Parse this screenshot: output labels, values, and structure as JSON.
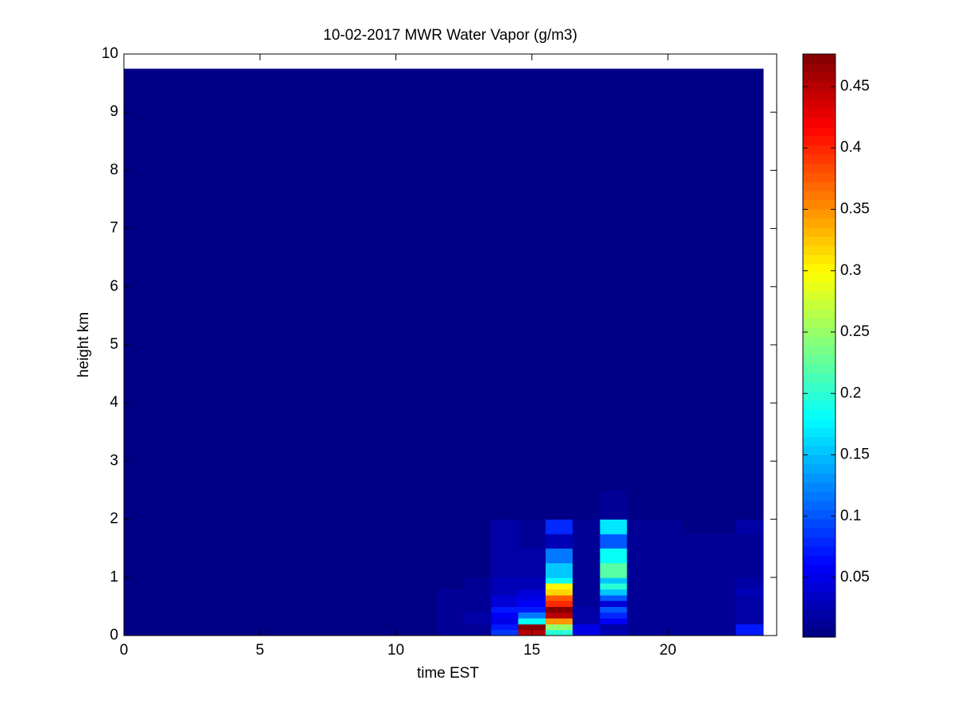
{
  "chart_data": {
    "type": "heatmap",
    "title": "10-02-2017 MWR Water Vapor (g/m3)",
    "x_label": "time EST",
    "y_label": "height km",
    "x": [
      0,
      0.5,
      1.5,
      2.5,
      3.5,
      4.5,
      5.5,
      6.5,
      7.5,
      8.5,
      9.5,
      10.5,
      11.5,
      12.5,
      13.5,
      14.5,
      15.5,
      16.5,
      17.5,
      18.5,
      19.5,
      20.5,
      21.5,
      22.5,
      23.5
    ],
    "y": [
      0,
      0.1,
      0.2,
      0.3,
      0.4,
      0.5,
      0.6,
      0.7,
      0.8,
      0.9,
      1.0,
      1.25,
      1.5,
      1.75,
      2.0,
      2.5,
      3.0,
      9.75
    ],
    "z": [
      [
        0.005,
        0.005,
        0.005,
        0.005,
        0.005,
        0.005,
        0.005,
        0.005,
        0.005,
        0.005,
        0.005,
        0.005,
        0.01,
        0.015,
        0.09,
        0.45,
        0.2,
        0.05,
        0.03,
        0.01,
        0.01,
        0.01,
        0.01,
        0.07
      ],
      [
        0.005,
        0.005,
        0.005,
        0.005,
        0.005,
        0.005,
        0.005,
        0.005,
        0.005,
        0.005,
        0.005,
        0.005,
        0.01,
        0.015,
        0.07,
        0.47,
        0.25,
        0.05,
        0.02,
        0.01,
        0.01,
        0.01,
        0.01,
        0.07
      ],
      [
        0.005,
        0.005,
        0.005,
        0.005,
        0.005,
        0.005,
        0.005,
        0.005,
        0.005,
        0.005,
        0.005,
        0.005,
        0.01,
        0.02,
        0.05,
        0.18,
        0.35,
        0.02,
        0.06,
        0.01,
        0.01,
        0.01,
        0.01,
        0.02
      ],
      [
        0.005,
        0.005,
        0.005,
        0.005,
        0.005,
        0.005,
        0.005,
        0.005,
        0.005,
        0.005,
        0.005,
        0.005,
        0.01,
        0.02,
        0.06,
        0.12,
        0.45,
        0.02,
        0.08,
        0.01,
        0.01,
        0.01,
        0.01,
        0.02
      ],
      [
        0.005,
        0.005,
        0.005,
        0.005,
        0.005,
        0.005,
        0.005,
        0.005,
        0.005,
        0.005,
        0.005,
        0.005,
        0.01,
        0.015,
        0.07,
        0.07,
        0.47,
        0.02,
        0.1,
        0.01,
        0.01,
        0.01,
        0.01,
        0.02
      ],
      [
        0.005,
        0.005,
        0.005,
        0.005,
        0.005,
        0.005,
        0.005,
        0.005,
        0.005,
        0.005,
        0.005,
        0.005,
        0.01,
        0.01,
        0.04,
        0.06,
        0.4,
        0.015,
        0.04,
        0.01,
        0.01,
        0.01,
        0.01,
        0.02
      ],
      [
        0.005,
        0.005,
        0.005,
        0.005,
        0.005,
        0.005,
        0.005,
        0.005,
        0.005,
        0.005,
        0.005,
        0.005,
        0.01,
        0.01,
        0.04,
        0.05,
        0.38,
        0.015,
        0.1,
        0.01,
        0.01,
        0.01,
        0.01,
        0.02
      ],
      [
        0.005,
        0.005,
        0.005,
        0.005,
        0.005,
        0.005,
        0.005,
        0.005,
        0.005,
        0.005,
        0.005,
        0.005,
        0.01,
        0.01,
        0.03,
        0.04,
        0.32,
        0.015,
        0.15,
        0.01,
        0.01,
        0.01,
        0.01,
        0.03
      ],
      [
        0.005,
        0.005,
        0.005,
        0.005,
        0.005,
        0.005,
        0.005,
        0.005,
        0.005,
        0.005,
        0.005,
        0.005,
        0.005,
        0.01,
        0.03,
        0.03,
        0.3,
        0.015,
        0.2,
        0.01,
        0.01,
        0.01,
        0.01,
        0.02
      ],
      [
        0.005,
        0.005,
        0.005,
        0.005,
        0.005,
        0.005,
        0.005,
        0.005,
        0.005,
        0.005,
        0.005,
        0.005,
        0.005,
        0.01,
        0.03,
        0.03,
        0.18,
        0.015,
        0.15,
        0.01,
        0.01,
        0.01,
        0.01,
        0.02
      ],
      [
        0.005,
        0.005,
        0.005,
        0.005,
        0.005,
        0.005,
        0.005,
        0.005,
        0.005,
        0.005,
        0.005,
        0.005,
        0.005,
        0.005,
        0.02,
        0.02,
        0.15,
        0.01,
        0.22,
        0.01,
        0.01,
        0.01,
        0.01,
        0.01
      ],
      [
        0.005,
        0.005,
        0.005,
        0.005,
        0.005,
        0.005,
        0.005,
        0.005,
        0.005,
        0.005,
        0.005,
        0.005,
        0.005,
        0.005,
        0.02,
        0.02,
        0.12,
        0.01,
        0.18,
        0.01,
        0.01,
        0.01,
        0.01,
        0.01
      ],
      [
        0.005,
        0.005,
        0.005,
        0.005,
        0.005,
        0.005,
        0.005,
        0.005,
        0.005,
        0.005,
        0.005,
        0.005,
        0.005,
        0.005,
        0.02,
        0.01,
        0.03,
        0.01,
        0.1,
        0.01,
        0.01,
        0.01,
        0.01,
        0.01
      ],
      [
        0.005,
        0.005,
        0.005,
        0.005,
        0.005,
        0.005,
        0.005,
        0.005,
        0.005,
        0.005,
        0.005,
        0.005,
        0.005,
        0.008,
        0.02,
        0.01,
        0.08,
        0.01,
        0.17,
        0.01,
        0.01,
        0.008,
        0.008,
        0.02
      ],
      [
        0.005,
        0.005,
        0.005,
        0.005,
        0.005,
        0.005,
        0.005,
        0.005,
        0.005,
        0.005,
        0.005,
        0.005,
        0.005,
        0.005,
        0.005,
        0.005,
        0.005,
        0.005,
        0.015,
        0.008,
        0.005,
        0.008,
        0.005,
        0.005
      ],
      [
        0.005,
        0.005,
        0.005,
        0.005,
        0.005,
        0.005,
        0.005,
        0.005,
        0.005,
        0.005,
        0.005,
        0.005,
        0.005,
        0.005,
        0.005,
        0.005,
        0.005,
        0.005,
        0.005,
        0.005,
        0.005,
        0.005,
        0.005,
        0.005
      ],
      [
        0.005,
        0.005,
        0.005,
        0.005,
        0.005,
        0.005,
        0.005,
        0.005,
        0.005,
        0.005,
        0.005,
        0.005,
        0.005,
        0.005,
        0.005,
        0.005,
        0.005,
        0.005,
        0.005,
        0.005,
        0.005,
        0.005,
        0.005,
        0.005
      ]
    ],
    "xlim": [
      0,
      24
    ],
    "xticks": [
      0,
      5,
      10,
      15,
      20
    ],
    "ylim": [
      0,
      10
    ],
    "yticks": [
      0,
      1,
      2,
      3,
      4,
      5,
      6,
      7,
      8,
      9,
      10
    ],
    "colormap": "jet",
    "clim": [
      0.0015,
      0.4765
    ],
    "cticks": [
      0.05,
      0.1,
      0.15,
      0.2,
      0.25,
      0.3,
      0.35,
      0.4,
      0.45
    ]
  }
}
